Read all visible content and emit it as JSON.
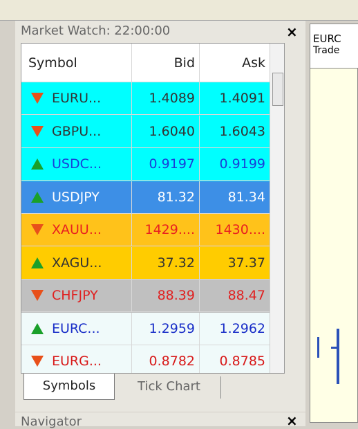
{
  "panel": {
    "title": "Market Watch: 22:00:00",
    "close": "×"
  },
  "table": {
    "headers": [
      "Symbol",
      "Bid",
      "Ask"
    ],
    "rows": [
      {
        "symbol": "EURU...",
        "bid": "1.4089",
        "ask": "1.4091",
        "trend": "down",
        "bg": "#00ffff",
        "color": "#333333"
      },
      {
        "symbol": "GBPU...",
        "bid": "1.6040",
        "ask": "1.6043",
        "trend": "down",
        "bg": "#00ffff",
        "color": "#333333"
      },
      {
        "symbol": "USDC...",
        "bid": "0.9197",
        "ask": "0.9199",
        "trend": "up",
        "bg": "#00ffff",
        "color": "#1a3fd8"
      },
      {
        "symbol": "USDJPY",
        "bid": "81.32",
        "ask": "81.34",
        "trend": "up",
        "bg": "#3d8fe6",
        "color": "#ffffff"
      },
      {
        "symbol": "XAUU...",
        "bid": "1429....",
        "ask": "1430....",
        "trend": "down",
        "bg": "#ffc21a",
        "color": "#e82020"
      },
      {
        "symbol": "XAGU...",
        "bid": "37.32",
        "ask": "37.37",
        "trend": "up",
        "bg": "#ffcc00",
        "color": "#333333"
      },
      {
        "symbol": "CHFJPY",
        "bid": "88.39",
        "ask": "88.47",
        "trend": "down",
        "bg": "#c0c0c0",
        "color": "#e02020"
      },
      {
        "symbol": "EURC...",
        "bid": "1.2959",
        "ask": "1.2962",
        "trend": "up",
        "bg": "#f0fafa",
        "color": "#1a2fc8"
      },
      {
        "symbol": "EURG...",
        "bid": "0.8782",
        "ask": "0.8785",
        "trend": "down",
        "bg": "#f0fafa",
        "color": "#d81818"
      }
    ]
  },
  "tabs": [
    "Symbols",
    "Tick Chart"
  ],
  "navigator": {
    "title": "Navigator",
    "close": "×"
  },
  "chart_window": {
    "title": "EURC",
    "subtitle": "Trade"
  }
}
